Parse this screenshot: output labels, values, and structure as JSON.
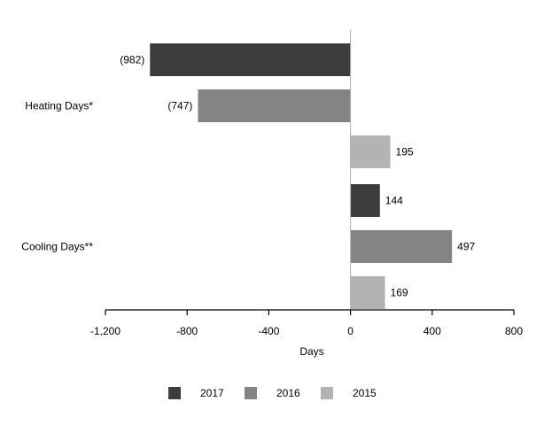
{
  "chart_data": {
    "type": "bar",
    "orientation": "horizontal",
    "categories": [
      "Heating Days*",
      "Cooling Days**"
    ],
    "series": [
      {
        "name": "2017",
        "values": [
          -982,
          144
        ],
        "labels": [
          "(982)",
          "144"
        ],
        "color": "#3d3d3d"
      },
      {
        "name": "2016",
        "values": [
          -747,
          497
        ],
        "labels": [
          "(747)",
          "497"
        ],
        "color": "#848484"
      },
      {
        "name": "2015",
        "values": [
          195,
          169
        ],
        "labels": [
          "195",
          "169"
        ],
        "color": "#b3b3b3"
      }
    ],
    "xlabel": "Days",
    "ylabel": "",
    "xlim": [
      -1200,
      800
    ],
    "xticks": [
      -1200,
      -800,
      -400,
      0,
      400,
      800
    ],
    "xtick_labels": [
      "-1,200",
      "-800",
      "-400",
      "0",
      "400",
      "800"
    ],
    "grid": false,
    "legend_position": "bottom"
  }
}
